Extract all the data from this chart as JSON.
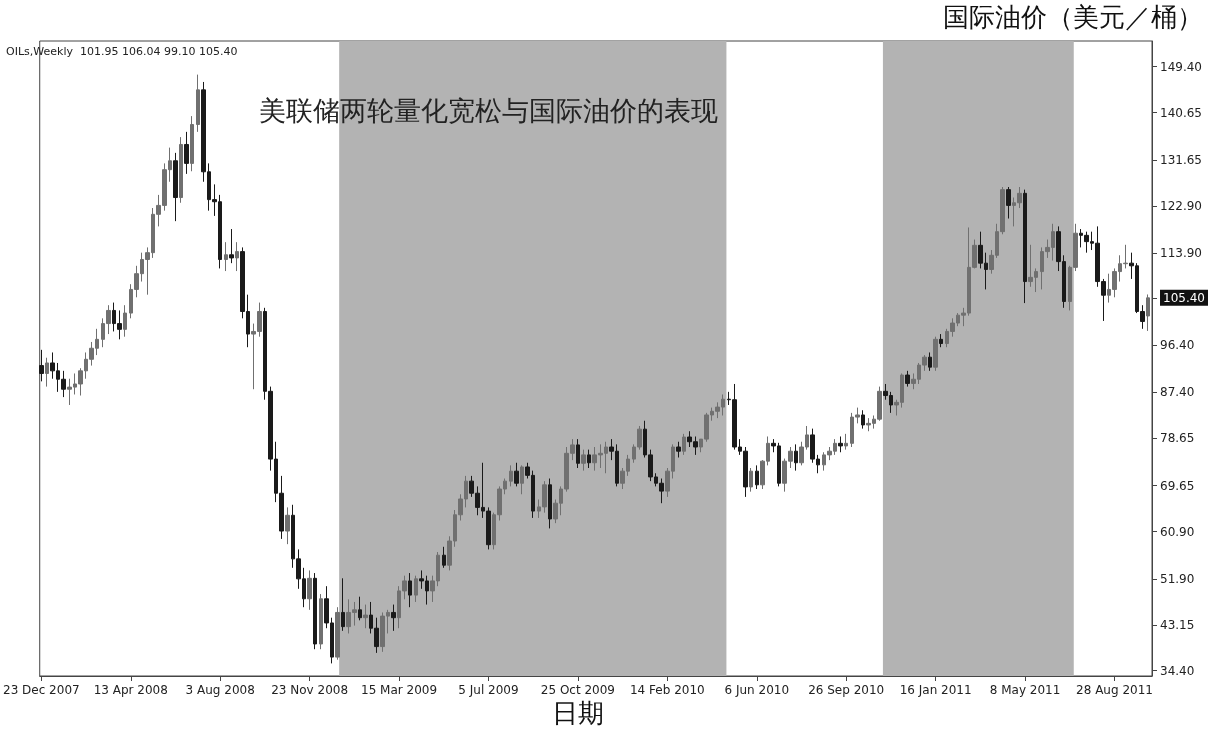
{
  "chart_data": {
    "type": "candlestick",
    "title": "美联储两轮量化宽松与国际油价的表现",
    "xlabel": "日期",
    "ylabel": "国际油价（美元／桶）",
    "annotations": [
      "OILs,Weekly  101.95 106.04 99.10 105.40"
    ],
    "grid": false,
    "colors": [
      "#1a1a1a",
      "#707070",
      "#1a1a1a",
      "#1a1a1a",
      "#1a1a1a",
      "#707070",
      "#707070",
      "#707070",
      "#707070",
      "#707070",
      "#707070",
      "#707070",
      "#707070",
      "#1a1a1a",
      "#1a1a1a",
      "#707070",
      "#707070",
      "#707070",
      "#707070",
      "#707070",
      "#707070",
      "#707070",
      "#707070",
      "#707070",
      "#1a1a1a",
      "#707070",
      "#1a1a1a",
      "#707070",
      "#707070",
      "#1a1a1a",
      "#1a1a1a",
      "#1a1a1a",
      "#1a1a1a",
      "#707070",
      "#1a1a1a",
      "#707070",
      "#1a1a1a",
      "#1a1a1a",
      "#707070",
      "#707070",
      "#1a1a1a",
      "#1a1a1a",
      "#1a1a1a",
      "#1a1a1a",
      "#707070",
      "#1a1a1a",
      "#1a1a1a",
      "#1a1a1a",
      "#707070",
      "#1a1a1a",
      "#707070",
      "#1a1a1a",
      "#1a1a1a",
      "#707070",
      "#1a1a1a",
      "#707070",
      "#707070",
      "#1a1a1a",
      "#707070",
      "#1a1a1a",
      "#1a1a1a",
      "#707070",
      "#707070",
      "#1a1a1a",
      "#707070",
      "#707070",
      "#1a1a1a",
      "#707070",
      "#1a1a1a",
      "#1a1a1a",
      "#707070",
      "#707070",
      "#1a1a1a",
      "#707070",
      "#707070",
      "#707070",
      "#707070",
      "#1a1a1a",
      "#1a1a1a",
      "#1a1a1a",
      "#1a1a1a",
      "#707070",
      "#707070",
      "#707070",
      "#707070",
      "#1a1a1a",
      "#707070",
      "#1a1a1a",
      "#1a1a1a",
      "#707070",
      "#707070",
      "#1a1a1a",
      "#707070",
      "#707070",
      "#707070",
      "#707070",
      "#1a1a1a",
      "#707070",
      "#1a1a1a",
      "#707070",
      "#707070",
      "#707070",
      "#1a1a1a",
      "#1a1a1a",
      "#707070",
      "#707070",
      "#707070",
      "#707070",
      "#1a1a1a",
      "#1a1a1a",
      "#1a1a1a",
      "#1a1a1a",
      "#707070",
      "#707070",
      "#1a1a1a",
      "#707070",
      "#1a1a1a",
      "#1a1a1a",
      "#707070",
      "#707070",
      "#707070",
      "#707070",
      "#707070",
      "#1a1a1a",
      "#1a1a1a",
      "#1a1a1a",
      "#1a1a1a",
      "#707070",
      "#1a1a1a",
      "#707070",
      "#707070",
      "#1a1a1a",
      "#1a1a1a",
      "#707070",
      "#707070",
      "#1a1a1a",
      "#707070",
      "#707070",
      "#1a1a1a",
      "#1a1a1a",
      "#707070",
      "#707070",
      "#707070",
      "#1a1a1a",
      "#707070",
      "#707070",
      "#707070",
      "#1a1a1a",
      "#707070",
      "#707070",
      "#707070",
      "#1a1a1a",
      "#1a1a1a",
      "#707070",
      "#707070",
      "#1a1a1a",
      "#707070",
      "#707070",
      "#707070",
      "#1a1a1a",
      "#707070",
      "#1a1a1a",
      "#707070",
      "#707070",
      "#707070",
      "#707070",
      "#707070",
      "#707070",
      "#1a1a1a",
      "#1a1a1a",
      "#707070",
      "#707070",
      "#707070",
      "#1a1a1a",
      "#707070",
      "#707070",
      "#1a1a1a",
      "#707070",
      "#707070",
      "#707070",
      "#707070",
      "#707070",
      "#1a1a1a",
      "#1a1a1a",
      "#707070",
      "#707070",
      "#1a1a1a",
      "#1a1a1a",
      "#1a1a1a",
      "#1a1a1a",
      "#1a1a1a",
      "#707070",
      "#707070",
      "#707070",
      "#707070",
      "#1a1a1a",
      "#1a1a1a",
      "#1a1a1a",
      "#707070"
    ],
    "xlim": [
      "2007-12-21",
      "2011-10-14"
    ],
    "xticks": [
      {
        "value": "2007-12-23",
        "label": "23 Dec 2007"
      },
      {
        "value": "2008-04-13",
        "label": "13 Apr 2008"
      },
      {
        "value": "2008-08-03",
        "label": "3 Aug 2008"
      },
      {
        "value": "2008-11-23",
        "label": "23 Nov 2008"
      },
      {
        "value": "2009-03-15",
        "label": "15 Mar 2009"
      },
      {
        "value": "2009-07-05",
        "label": "5 Jul 2009"
      },
      {
        "value": "2009-10-25",
        "label": "25 Oct 2009"
      },
      {
        "value": "2010-02-14",
        "label": "14 Feb 2010"
      },
      {
        "value": "2010-06-06",
        "label": "6 Jun 2010"
      },
      {
        "value": "2010-09-26",
        "label": "26 Sep 2010"
      },
      {
        "value": "2011-01-16",
        "label": "16 Jan 2011"
      },
      {
        "value": "2011-05-08",
        "label": "8 May 2011"
      },
      {
        "value": "2011-08-28",
        "label": "28 Aug 2011"
      }
    ],
    "ylim": [
      33.4,
      154.3
    ],
    "yticks": [
      {
        "value": 34.4,
        "label": "34.40"
      },
      {
        "value": 43.15,
        "label": "43.15"
      },
      {
        "value": 51.9,
        "label": "51.90"
      },
      {
        "value": 60.9,
        "label": "60.90"
      },
      {
        "value": 69.65,
        "label": "69.65"
      },
      {
        "value": 78.65,
        "label": "78.65"
      },
      {
        "value": 87.4,
        "label": "87.40"
      },
      {
        "value": 96.4,
        "label": "96.40"
      },
      {
        "value": 105.4,
        "label": "105.40"
      },
      {
        "value": 113.9,
        "label": "113.90"
      },
      {
        "value": 122.9,
        "label": "122.90"
      },
      {
        "value": 131.65,
        "label": "131.65"
      },
      {
        "value": 140.65,
        "label": "140.65"
      },
      {
        "value": 149.4,
        "label": "149.40"
      }
    ],
    "bands": [
      {
        "axis": "x",
        "from": "2008-12-30",
        "to": "2010-04-29",
        "color": "#b3b3b3"
      },
      {
        "axis": "x",
        "from": "2010-11-11",
        "to": "2011-07-08",
        "color": "#b3b3b3"
      }
    ],
    "x": [
      "2007-12-23",
      "2007-12-30",
      "2008-01-06",
      "2008-01-13",
      "2008-01-20",
      "2008-01-27",
      "2008-02-03",
      "2008-02-10",
      "2008-02-17",
      "2008-02-24",
      "2008-03-02",
      "2008-03-09",
      "2008-03-16",
      "2008-03-23",
      "2008-03-30",
      "2008-04-06",
      "2008-04-13",
      "2008-04-20",
      "2008-04-27",
      "2008-05-04",
      "2008-05-11",
      "2008-05-18",
      "2008-05-25",
      "2008-06-01",
      "2008-06-08",
      "2008-06-15",
      "2008-06-22",
      "2008-06-29",
      "2008-07-06",
      "2008-07-13",
      "2008-07-20",
      "2008-07-27",
      "2008-08-03",
      "2008-08-10",
      "2008-08-17",
      "2008-08-24",
      "2008-08-31",
      "2008-09-07",
      "2008-09-14",
      "2008-09-21",
      "2008-09-28",
      "2008-10-05",
      "2008-10-12",
      "2008-10-19",
      "2008-10-26",
      "2008-11-02",
      "2008-11-09",
      "2008-11-16",
      "2008-11-23",
      "2008-11-30",
      "2008-12-07",
      "2008-12-14",
      "2008-12-21",
      "2008-12-28",
      "2009-01-04",
      "2009-01-11",
      "2009-01-18",
      "2009-01-25",
      "2009-02-01",
      "2009-02-08",
      "2009-02-15",
      "2009-02-22",
      "2009-03-01",
      "2009-03-08",
      "2009-03-15",
      "2009-03-22",
      "2009-03-29",
      "2009-04-05",
      "2009-04-12",
      "2009-04-19",
      "2009-04-26",
      "2009-05-03",
      "2009-05-10",
      "2009-05-17",
      "2009-05-24",
      "2009-05-31",
      "2009-06-07",
      "2009-06-14",
      "2009-06-21",
      "2009-06-28",
      "2009-07-05",
      "2009-07-12",
      "2009-07-19",
      "2009-07-26",
      "2009-08-02",
      "2009-08-09",
      "2009-08-16",
      "2009-08-23",
      "2009-08-30",
      "2009-09-06",
      "2009-09-13",
      "2009-09-20",
      "2009-09-27",
      "2009-10-04",
      "2009-10-11",
      "2009-10-18",
      "2009-10-25",
      "2009-11-01",
      "2009-11-08",
      "2009-11-15",
      "2009-11-22",
      "2009-11-29",
      "2009-12-06",
      "2009-12-13",
      "2009-12-20",
      "2009-12-27",
      "2010-01-03",
      "2010-01-10",
      "2010-01-17",
      "2010-01-24",
      "2010-01-31",
      "2010-02-07",
      "2010-02-14",
      "2010-02-21",
      "2010-02-28",
      "2010-03-07",
      "2010-03-14",
      "2010-03-21",
      "2010-03-28",
      "2010-04-04",
      "2010-04-11",
      "2010-04-18",
      "2010-04-25",
      "2010-05-02",
      "2010-05-09",
      "2010-05-16",
      "2010-05-23",
      "2010-05-30",
      "2010-06-06",
      "2010-06-13",
      "2010-06-20",
      "2010-06-27",
      "2010-07-04",
      "2010-07-11",
      "2010-07-18",
      "2010-07-25",
      "2010-08-01",
      "2010-08-08",
      "2010-08-15",
      "2010-08-22",
      "2010-08-29",
      "2010-09-05",
      "2010-09-12",
      "2010-09-19",
      "2010-09-26",
      "2010-10-03",
      "2010-10-10",
      "2010-10-17",
      "2010-10-24",
      "2010-10-31",
      "2010-11-07",
      "2010-11-14",
      "2010-11-21",
      "2010-11-28",
      "2010-12-05",
      "2010-12-12",
      "2010-12-19",
      "2010-12-26",
      "2011-01-02",
      "2011-01-09",
      "2011-01-16",
      "2011-01-23",
      "2011-01-30",
      "2011-02-06",
      "2011-02-13",
      "2011-02-20",
      "2011-02-27",
      "2011-03-06",
      "2011-03-13",
      "2011-03-20",
      "2011-03-27",
      "2011-04-03",
      "2011-04-10",
      "2011-04-17",
      "2011-04-24",
      "2011-05-01",
      "2011-05-08",
      "2011-05-15",
      "2011-05-22",
      "2011-05-29",
      "2011-06-05",
      "2011-06-12",
      "2011-06-19",
      "2011-06-26",
      "2011-07-03",
      "2011-07-10",
      "2011-07-17",
      "2011-07-24",
      "2011-07-31",
      "2011-08-07",
      "2011-08-14",
      "2011-08-21",
      "2011-08-28",
      "2011-09-04",
      "2011-09-11",
      "2011-09-18",
      "2011-09-25",
      "2011-10-02",
      "2011-10-09"
    ],
    "ohlc": [
      [
        92.5,
        95.5,
        89.5,
        91.0
      ],
      [
        91.0,
        94.0,
        88.5,
        93.0
      ],
      [
        93.0,
        95.0,
        90.0,
        91.5
      ],
      [
        91.5,
        93.0,
        87.5,
        89.9
      ],
      [
        89.9,
        91.5,
        86.5,
        88.0
      ],
      [
        88.0,
        90.0,
        85.0,
        88.4
      ],
      [
        88.4,
        91.0,
        87.0,
        89.0
      ],
      [
        89.0,
        92.0,
        86.8,
        91.5
      ],
      [
        91.5,
        95.0,
        90.0,
        93.7
      ],
      [
        93.7,
        97.0,
        92.5,
        95.8
      ],
      [
        95.8,
        99.5,
        94.5,
        97.5
      ],
      [
        97.5,
        101.5,
        96.0,
        100.5
      ],
      [
        100.5,
        104.0,
        98.5,
        103.0
      ],
      [
        103.0,
        104.5,
        99.0,
        100.5
      ],
      [
        100.5,
        103.0,
        97.5,
        99.4
      ],
      [
        99.4,
        104.0,
        98.0,
        102.5
      ],
      [
        102.5,
        108.0,
        101.5,
        107.0
      ],
      [
        107.0,
        111.5,
        105.5,
        110.0
      ],
      [
        110.0,
        114.0,
        108.5,
        112.7
      ],
      [
        112.7,
        115.0,
        106.0,
        114.0
      ],
      [
        114.0,
        122.5,
        113.0,
        121.3
      ],
      [
        121.3,
        125.0,
        119.0,
        123.0
      ],
      [
        123.0,
        131.0,
        122.0,
        129.8
      ],
      [
        129.8,
        134.0,
        127.5,
        131.5
      ],
      [
        131.5,
        133.0,
        120.0,
        124.5
      ],
      [
        124.5,
        136.0,
        123.5,
        134.6
      ],
      [
        134.6,
        137.0,
        129.0,
        131.0
      ],
      [
        131.0,
        140.0,
        129.5,
        138.4
      ],
      [
        138.4,
        147.9,
        137.0,
        145.0
      ],
      [
        145.0,
        146.5,
        127.5,
        129.4
      ],
      [
        129.4,
        131.0,
        122.0,
        124.1
      ],
      [
        124.1,
        127.0,
        121.0,
        123.7
      ],
      [
        123.7,
        125.0,
        111.0,
        112.7
      ],
      [
        112.7,
        116.0,
        110.5,
        113.6
      ],
      [
        113.6,
        118.5,
        112.0,
        113.0
      ],
      [
        113.0,
        116.0,
        110.5,
        114.2
      ],
      [
        114.2,
        115.0,
        101.5,
        102.8
      ],
      [
        102.8,
        106.0,
        96.0,
        98.5
      ],
      [
        98.5,
        100.5,
        88.0,
        99.0
      ],
      [
        99.0,
        104.5,
        98.0,
        102.8
      ],
      [
        102.8,
        103.5,
        86.0,
        87.6
      ],
      [
        87.6,
        88.5,
        72.5,
        74.7
      ],
      [
        74.7,
        78.0,
        66.5,
        68.2
      ],
      [
        68.2,
        71.5,
        59.5,
        61.0
      ],
      [
        61.0,
        65.5,
        58.5,
        64.0
      ],
      [
        64.0,
        66.0,
        54.0,
        55.7
      ],
      [
        55.7,
        57.5,
        50.0,
        51.9
      ],
      [
        51.9,
        54.0,
        46.5,
        48.1
      ],
      [
        48.1,
        53.5,
        46.0,
        52.0
      ],
      [
        52.0,
        53.0,
        38.5,
        39.5
      ],
      [
        39.5,
        49.0,
        38.5,
        48.1
      ],
      [
        48.1,
        50.5,
        42.5,
        43.5
      ],
      [
        43.5,
        44.5,
        35.8,
        37.0
      ],
      [
        37.0,
        46.5,
        36.5,
        45.5
      ],
      [
        45.5,
        52.0,
        42.0,
        42.8
      ],
      [
        42.8,
        48.0,
        41.5,
        45.5
      ],
      [
        45.5,
        47.5,
        43.0,
        46.0
      ],
      [
        46.0,
        48.5,
        44.0,
        44.5
      ],
      [
        44.5,
        47.0,
        42.5,
        45.0
      ],
      [
        45.0,
        47.5,
        41.5,
        42.5
      ],
      [
        42.5,
        44.5,
        37.8,
        39.0
      ],
      [
        39.0,
        45.5,
        38.0,
        44.8
      ],
      [
        44.8,
        46.0,
        41.5,
        45.5
      ],
      [
        45.5,
        47.0,
        42.0,
        44.5
      ],
      [
        44.5,
        50.5,
        42.5,
        49.6
      ],
      [
        49.6,
        52.5,
        48.0,
        51.5
      ],
      [
        51.5,
        53.0,
        46.5,
        48.8
      ],
      [
        48.8,
        52.5,
        47.5,
        51.9
      ],
      [
        51.9,
        53.5,
        50.0,
        51.5
      ],
      [
        51.5,
        52.5,
        47.0,
        49.6
      ],
      [
        49.6,
        52.5,
        47.5,
        51.5
      ],
      [
        51.5,
        57.0,
        50.5,
        56.4
      ],
      [
        56.4,
        58.0,
        54.0,
        54.5
      ],
      [
        54.5,
        60.0,
        53.5,
        59.1
      ],
      [
        59.1,
        65.0,
        58.0,
        64.1
      ],
      [
        64.1,
        68.0,
        63.0,
        67.1
      ],
      [
        67.1,
        71.5,
        65.5,
        70.5
      ],
      [
        70.5,
        71.5,
        67.5,
        68.2
      ],
      [
        68.2,
        69.5,
        64.0,
        65.5
      ],
      [
        65.5,
        74.0,
        63.5,
        64.8
      ],
      [
        64.8,
        65.5,
        57.5,
        58.4
      ],
      [
        58.4,
        64.5,
        57.5,
        64.1
      ],
      [
        64.1,
        69.5,
        63.0,
        69.0
      ],
      [
        69.0,
        71.0,
        68.0,
        70.5
      ],
      [
        70.5,
        73.5,
        69.5,
        72.4
      ],
      [
        72.4,
        74.0,
        69.5,
        70.1
      ],
      [
        70.1,
        73.5,
        68.0,
        73.2
      ],
      [
        73.2,
        74.0,
        71.0,
        71.6
      ],
      [
        71.6,
        72.5,
        63.5,
        64.8
      ],
      [
        64.8,
        67.0,
        63.5,
        65.6
      ],
      [
        65.6,
        70.5,
        64.5,
        69.8
      ],
      [
        69.8,
        71.0,
        61.5,
        63.3
      ],
      [
        63.3,
        67.0,
        62.5,
        66.3
      ],
      [
        66.3,
        69.5,
        64.0,
        69.0
      ],
      [
        69.0,
        77.0,
        68.5,
        75.8
      ],
      [
        75.8,
        78.5,
        74.5,
        77.4
      ],
      [
        77.4,
        78.5,
        73.0,
        73.9
      ],
      [
        73.9,
        76.5,
        72.5,
        75.5
      ],
      [
        75.5,
        76.5,
        73.0,
        74.0
      ],
      [
        74.0,
        77.0,
        72.5,
        75.5
      ],
      [
        75.5,
        77.5,
        73.0,
        75.8
      ],
      [
        75.8,
        78.0,
        72.0,
        77.0
      ],
      [
        77.0,
        78.5,
        74.5,
        76.2
      ],
      [
        76.2,
        77.5,
        69.5,
        70.1
      ],
      [
        70.1,
        73.0,
        69.0,
        72.4
      ],
      [
        72.4,
        75.5,
        71.5,
        74.7
      ],
      [
        74.7,
        77.5,
        74.0,
        77.0
      ],
      [
        77.0,
        81.0,
        76.5,
        80.4
      ],
      [
        80.4,
        82.0,
        75.0,
        75.5
      ],
      [
        75.5,
        76.5,
        70.5,
        71.3
      ],
      [
        71.3,
        72.0,
        69.5,
        70.1
      ],
      [
        70.1,
        71.0,
        66.3,
        68.6
      ],
      [
        68.6,
        73.0,
        67.5,
        72.4
      ],
      [
        72.4,
        77.5,
        71.0,
        77.0
      ],
      [
        77.0,
        78.0,
        75.0,
        76.2
      ],
      [
        76.2,
        79.5,
        75.5,
        78.9
      ],
      [
        78.9,
        80.0,
        77.0,
        78.0
      ],
      [
        78.0,
        79.0,
        75.5,
        77.0
      ],
      [
        77.0,
        78.5,
        76.0,
        78.5
      ],
      [
        78.5,
        83.5,
        78.0,
        83.1
      ],
      [
        83.1,
        84.5,
        82.0,
        83.8
      ],
      [
        83.8,
        85.5,
        82.5,
        84.6
      ],
      [
        84.6,
        87.0,
        83.0,
        86.1
      ],
      [
        86.1,
        87.5,
        85.0,
        86.0
      ],
      [
        86.0,
        89.0,
        76.5,
        77.0
      ],
      [
        77.0,
        78.5,
        75.5,
        76.2
      ],
      [
        76.2,
        77.0,
        67.5,
        69.4
      ],
      [
        69.4,
        73.0,
        68.5,
        72.4
      ],
      [
        72.4,
        73.5,
        69.0,
        69.8
      ],
      [
        69.8,
        74.5,
        69.0,
        74.3
      ],
      [
        74.3,
        79.0,
        73.5,
        77.7
      ],
      [
        77.7,
        78.5,
        76.0,
        77.2
      ],
      [
        77.2,
        77.8,
        69.5,
        70.1
      ],
      [
        70.1,
        74.8,
        68.5,
        74.3
      ],
      [
        74.3,
        77.0,
        73.0,
        76.2
      ],
      [
        76.2,
        77.5,
        72.5,
        74.0
      ],
      [
        74.0,
        78.0,
        73.5,
        77.0
      ],
      [
        77.0,
        81.0,
        76.5,
        79.3
      ],
      [
        79.3,
        80.5,
        74.0,
        74.7
      ],
      [
        74.7,
        75.5,
        72.0,
        73.6
      ],
      [
        73.6,
        76.0,
        72.5,
        75.5
      ],
      [
        75.5,
        77.0,
        74.5,
        76.2
      ],
      [
        76.2,
        78.5,
        75.5,
        77.7
      ],
      [
        77.7,
        79.0,
        76.0,
        77.2
      ],
      [
        77.2,
        79.5,
        76.5,
        77.7
      ],
      [
        77.7,
        83.5,
        77.0,
        82.7
      ],
      [
        82.7,
        84.5,
        81.5,
        83.1
      ],
      [
        83.1,
        84.0,
        80.5,
        81.2
      ],
      [
        81.2,
        82.5,
        80.0,
        81.5
      ],
      [
        81.5,
        83.0,
        80.5,
        82.3
      ],
      [
        82.3,
        88.5,
        82.0,
        87.6
      ],
      [
        87.6,
        89.0,
        86.0,
        86.8
      ],
      [
        86.8,
        87.5,
        83.5,
        85.0
      ],
      [
        85.0,
        86.0,
        83.0,
        85.5
      ],
      [
        85.5,
        91.0,
        84.5,
        90.7
      ],
      [
        90.7,
        91.5,
        88.5,
        89.1
      ],
      [
        89.1,
        91.0,
        88.0,
        89.9
      ],
      [
        89.9,
        93.0,
        89.0,
        92.6
      ],
      [
        92.6,
        94.5,
        91.5,
        94.1
      ],
      [
        94.1,
        95.0,
        91.5,
        92.2
      ],
      [
        92.2,
        98.0,
        91.5,
        97.5
      ],
      [
        97.5,
        98.5,
        96.0,
        96.7
      ],
      [
        96.7,
        99.5,
        96.0,
        99.0
      ],
      [
        99.0,
        101.5,
        98.0,
        100.6
      ],
      [
        100.6,
        102.5,
        100.0,
        102.1
      ],
      [
        102.1,
        103.5,
        100.0,
        102.5
      ],
      [
        102.5,
        118.8,
        102.0,
        111.2
      ],
      [
        111.2,
        116.5,
        111.0,
        115.4
      ],
      [
        115.4,
        118.0,
        111.0,
        112.0
      ],
      [
        112.0,
        114.0,
        107.0,
        110.8
      ],
      [
        110.8,
        114.5,
        110.0,
        113.5
      ],
      [
        113.5,
        119.5,
        113.0,
        118.0
      ],
      [
        118.0,
        126.5,
        117.5,
        126.0
      ],
      [
        126.0,
        126.5,
        120.5,
        123.0
      ],
      [
        123.0,
        124.5,
        119.0,
        123.5
      ],
      [
        123.5,
        126.5,
        122.5,
        125.3
      ],
      [
        125.3,
        126.0,
        104.4,
        108.5
      ],
      [
        108.5,
        115.5,
        107.5,
        109.3
      ],
      [
        109.3,
        111.0,
        106.5,
        110.4
      ],
      [
        110.4,
        115.0,
        107.0,
        114.2
      ],
      [
        114.2,
        116.5,
        113.0,
        115.0
      ],
      [
        115.0,
        119.5,
        112.5,
        118.0
      ],
      [
        118.0,
        119.0,
        110.5,
        112.3
      ],
      [
        112.3,
        113.5,
        103.5,
        104.7
      ],
      [
        104.7,
        111.5,
        103.0,
        111.2
      ],
      [
        111.2,
        119.5,
        110.5,
        117.7
      ],
      [
        117.7,
        118.5,
        115.0,
        117.3
      ],
      [
        117.3,
        118.0,
        114.0,
        116.1
      ],
      [
        116.1,
        118.0,
        114.5,
        115.8
      ],
      [
        115.8,
        119.0,
        107.5,
        108.5
      ],
      [
        108.5,
        109.0,
        101.0,
        105.9
      ],
      [
        105.9,
        110.0,
        104.5,
        107.0
      ],
      [
        107.0,
        111.0,
        105.5,
        110.4
      ],
      [
        110.4,
        113.5,
        108.5,
        111.9
      ],
      [
        111.9,
        115.5,
        111.0,
        112.0
      ],
      [
        112.0,
        114.0,
        109.0,
        111.5
      ],
      [
        111.5,
        112.0,
        102.5,
        102.8
      ],
      [
        102.8,
        104.0,
        99.5,
        100.9
      ],
      [
        101.95,
        106.04,
        99.1,
        105.4
      ]
    ]
  }
}
